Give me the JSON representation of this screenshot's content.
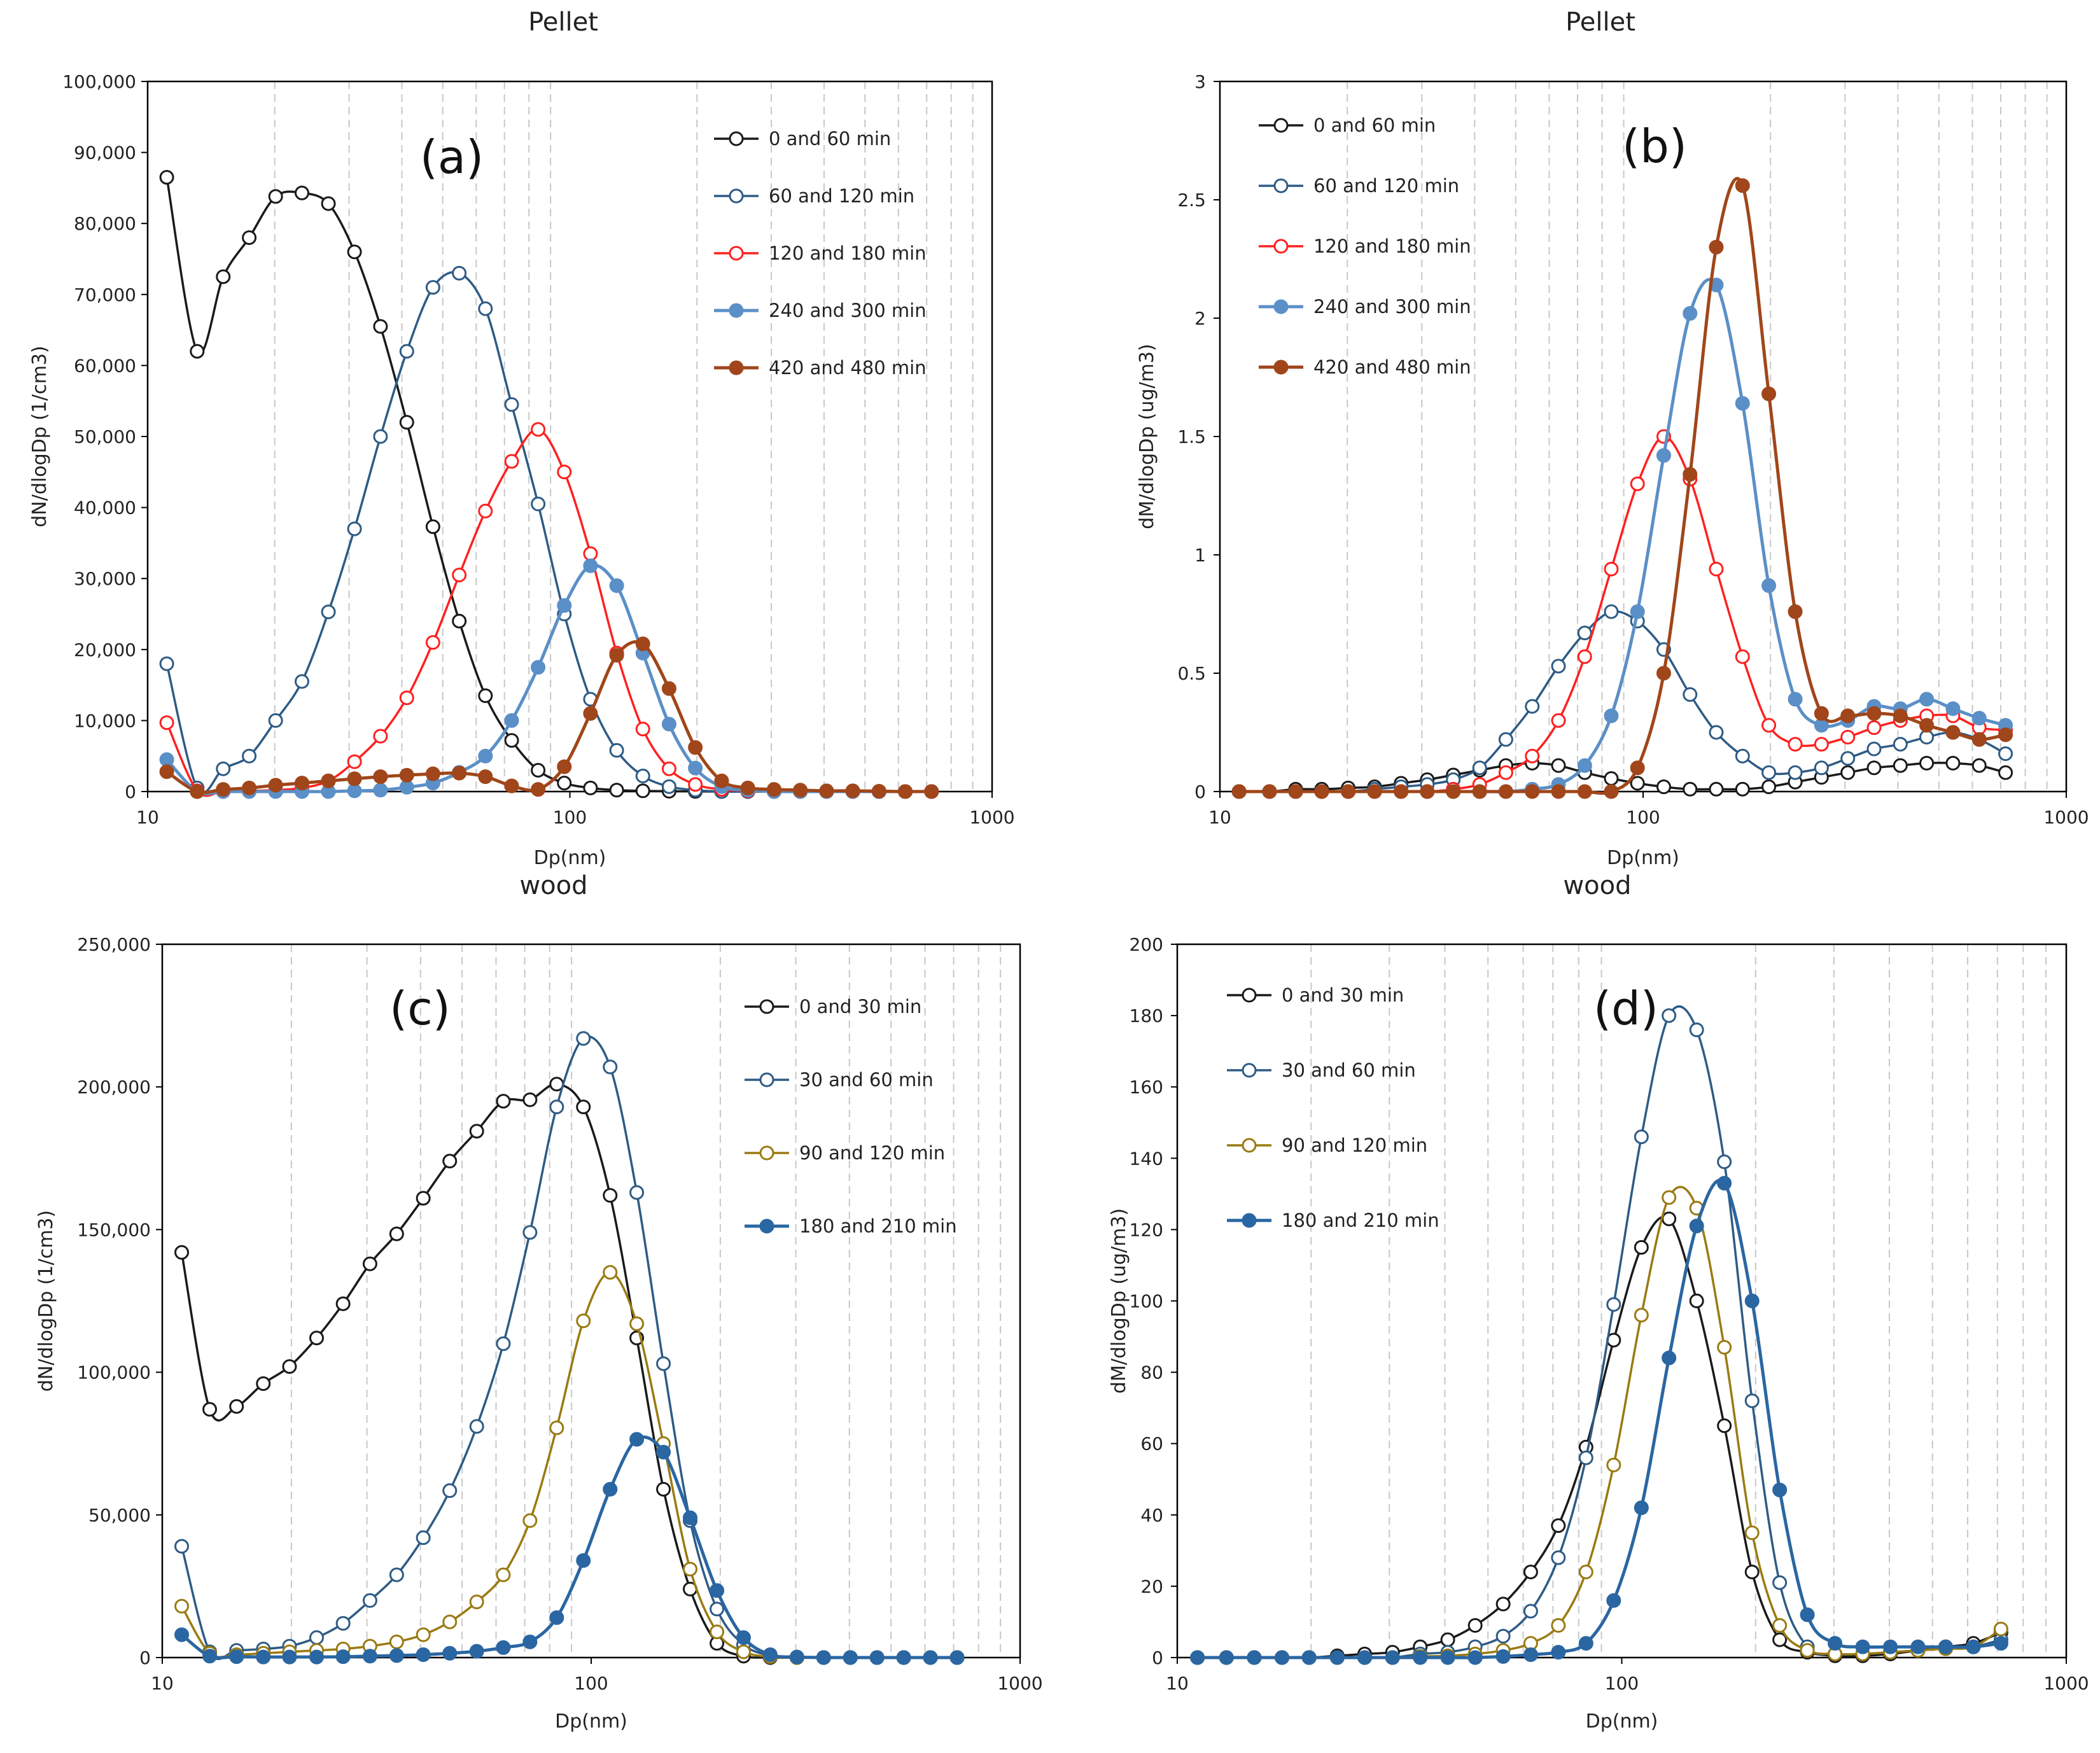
{
  "figure": "particle size distributions",
  "colors": {
    "black": "#1a1a1a",
    "navy": "#2e5b85",
    "red": "#ff2020",
    "steel": "#5b8fc7",
    "brown": "#a0461a",
    "olive": "#9a7a12",
    "darkblue": "#2a66a2",
    "grid": "#c8c8c8"
  },
  "chart_data": [
    {
      "id": "a",
      "type": "line",
      "title": "Pellet",
      "panel_label": "(a)",
      "xlabel": "Dp(nm)",
      "ylabel": "dN/dlogDp (1/cm3)",
      "xscale": "log",
      "xlim": [
        10,
        1000
      ],
      "ylim": [
        0,
        100000
      ],
      "xticks": [
        10,
        100,
        1000
      ],
      "xtick_labels": [
        "10",
        "100",
        "1000"
      ],
      "yticks": [
        0,
        10000,
        20000,
        30000,
        40000,
        50000,
        60000,
        70000,
        80000,
        90000,
        100000
      ],
      "ytick_labels": [
        "0",
        "10,000",
        "20,000",
        "30,000",
        "40,000",
        "50,000",
        "60,000",
        "70,000",
        "80,000",
        "90,000",
        "100,000"
      ],
      "x": [
        11.1,
        13.1,
        15.1,
        17.4,
        20.1,
        23.2,
        26.8,
        30.9,
        35.6,
        41.1,
        47.4,
        54.7,
        63.1,
        72.8,
        84.1,
        97.0,
        111.9,
        129.1,
        148.9,
        171.8,
        198.2,
        228.8,
        264.0,
        304.6,
        351.4,
        405.5,
        467.8,
        539.8,
        622.8,
        718.6
      ],
      "series": [
        {
          "name": "0 and 60 min",
          "color_key": "black",
          "filled": false,
          "values": [
            86500,
            62000,
            72500,
            78000,
            83800,
            84300,
            82800,
            76000,
            65500,
            52000,
            37300,
            24000,
            13500,
            7200,
            3000,
            1200,
            500,
            200,
            100,
            50,
            20,
            10,
            0,
            0,
            0,
            0,
            0,
            0,
            0,
            0
          ]
        },
        {
          "name": "60 and 120 min",
          "color_key": "navy",
          "filled": false,
          "values": [
            18000,
            500,
            3200,
            5000,
            10000,
            15500,
            25300,
            37000,
            50000,
            62000,
            71000,
            73000,
            68000,
            54500,
            40500,
            25000,
            13000,
            5800,
            2200,
            700,
            200,
            0,
            0,
            0,
            0,
            0,
            0,
            0,
            0,
            0
          ]
        },
        {
          "name": "120 and 180 min",
          "color_key": "red",
          "filled": false,
          "values": [
            9700,
            100,
            50,
            100,
            200,
            500,
            1500,
            4200,
            7800,
            13200,
            21000,
            30500,
            39500,
            46500,
            51000,
            45000,
            33500,
            19500,
            8800,
            3200,
            1000,
            300,
            100,
            0,
            0,
            0,
            0,
            0,
            0,
            0
          ]
        },
        {
          "name": "240 and 300 min",
          "color_key": "steel",
          "filled": true,
          "values": [
            4500,
            0,
            0,
            0,
            0,
            0,
            0,
            100,
            200,
            600,
            1200,
            2700,
            5000,
            10000,
            17500,
            26200,
            31800,
            29000,
            19500,
            9500,
            3300,
            700,
            200,
            0,
            0,
            0,
            0,
            0,
            0,
            0
          ]
        },
        {
          "name": "420 and 480 min",
          "color_key": "brown",
          "filled": true,
          "values": [
            2800,
            0,
            300,
            500,
            900,
            1200,
            1500,
            1800,
            2100,
            2300,
            2500,
            2600,
            2100,
            800,
            300,
            3500,
            11000,
            19200,
            20800,
            14500,
            6200,
            1500,
            500,
            300,
            200,
            100,
            100,
            50,
            0,
            0
          ]
        }
      ]
    },
    {
      "id": "b",
      "type": "line",
      "title": "Pellet",
      "panel_label": "(b)",
      "xlabel": "Dp(nm)",
      "ylabel": "dM/dlogDp (ug/m3)",
      "xscale": "log",
      "xlim": [
        10,
        1000
      ],
      "ylim": [
        0,
        3
      ],
      "xticks": [
        10,
        100,
        1000
      ],
      "xtick_labels": [
        "10",
        "100",
        "1000"
      ],
      "yticks": [
        0,
        0.5,
        1,
        1.5,
        2,
        2.5,
        3
      ],
      "ytick_labels": [
        "0",
        "0.5",
        "1",
        "1.5",
        "2",
        "2.5",
        "3"
      ],
      "x": [
        11.1,
        13.1,
        15.1,
        17.4,
        20.1,
        23.2,
        26.8,
        30.9,
        35.6,
        41.1,
        47.4,
        54.7,
        63.1,
        72.8,
        84.1,
        97.0,
        111.9,
        129.1,
        148.9,
        171.8,
        198.2,
        228.8,
        264.0,
        304.6,
        351.4,
        405.5,
        467.8,
        539.8,
        622.8,
        718.6
      ],
      "series": [
        {
          "name": "0 and 60 min",
          "color_key": "black",
          "filled": false,
          "values": [
            0.0,
            0.0,
            0.01,
            0.01,
            0.015,
            0.02,
            0.035,
            0.05,
            0.07,
            0.09,
            0.11,
            0.12,
            0.11,
            0.08,
            0.055,
            0.035,
            0.02,
            0.01,
            0.01,
            0.01,
            0.02,
            0.04,
            0.06,
            0.08,
            0.1,
            0.11,
            0.12,
            0.12,
            0.11,
            0.08
          ]
        },
        {
          "name": "60 and 120 min",
          "color_key": "navy",
          "filled": false,
          "values": [
            0.0,
            0.0,
            0.0,
            0.0,
            0.0,
            0.01,
            0.02,
            0.03,
            0.05,
            0.1,
            0.22,
            0.36,
            0.53,
            0.67,
            0.76,
            0.72,
            0.6,
            0.41,
            0.25,
            0.15,
            0.08,
            0.08,
            0.1,
            0.14,
            0.18,
            0.2,
            0.23,
            0.25,
            0.22,
            0.16
          ]
        },
        {
          "name": "120 and 180 min",
          "color_key": "red",
          "filled": false,
          "values": [
            0.0,
            0.0,
            0.0,
            0.0,
            0.0,
            0.0,
            0.0,
            0.0,
            0.01,
            0.03,
            0.08,
            0.15,
            0.3,
            0.57,
            0.94,
            1.3,
            1.5,
            1.32,
            0.94,
            0.57,
            0.28,
            0.2,
            0.2,
            0.23,
            0.27,
            0.3,
            0.32,
            0.32,
            0.27,
            0.26
          ]
        },
        {
          "name": "240 and 300 min",
          "color_key": "steel",
          "filled": true,
          "values": [
            0.0,
            0.0,
            0.0,
            0.0,
            0.0,
            0.0,
            0.0,
            0.0,
            0.0,
            0.0,
            0.0,
            0.01,
            0.03,
            0.11,
            0.32,
            0.76,
            1.42,
            2.02,
            2.14,
            1.64,
            0.87,
            0.39,
            0.28,
            0.3,
            0.36,
            0.35,
            0.39,
            0.35,
            0.31,
            0.28
          ]
        },
        {
          "name": "420 and 480 min",
          "color_key": "brown",
          "filled": true,
          "values": [
            0.0,
            0.0,
            0.0,
            0.0,
            0.0,
            0.0,
            0.0,
            0.0,
            0.0,
            0.0,
            0.0,
            0.0,
            0.0,
            0.0,
            0.0,
            0.1,
            0.5,
            1.34,
            2.3,
            2.56,
            1.68,
            0.76,
            0.33,
            0.32,
            0.33,
            0.32,
            0.28,
            0.25,
            0.22,
            0.24
          ]
        }
      ]
    },
    {
      "id": "c",
      "type": "line",
      "title": "wood",
      "panel_label": "(c)",
      "xlabel": "Dp(nm)",
      "ylabel": "dN/dlogDp (1/cm3)",
      "xscale": "log",
      "xlim": [
        10,
        1000
      ],
      "ylim": [
        0,
        250000
      ],
      "xticks": [
        10,
        100,
        1000
      ],
      "xtick_labels": [
        "10",
        "100",
        "1000"
      ],
      "yticks": [
        0,
        50000,
        100000,
        150000,
        200000,
        250000
      ],
      "ytick_labels": [
        "0",
        "50,000",
        "100,000",
        "150,000",
        "200,000",
        "250,000"
      ],
      "x": [
        11.1,
        12.9,
        14.9,
        17.2,
        19.8,
        22.9,
        26.4,
        30.5,
        35.2,
        40.6,
        46.8,
        54.1,
        62.4,
        72.0,
        83.1,
        95.9,
        110.7,
        127.7,
        147.4,
        170.1,
        196.4,
        226.6,
        261.5,
        301.8,
        348.3,
        402.0,
        463.9,
        535.4,
        617.9,
        713.1
      ],
      "series": [
        {
          "name": "0 and 30 min",
          "color_key": "black",
          "filled": false,
          "values": [
            142000,
            87000,
            88000,
            96000,
            102000,
            112000,
            124000,
            138000,
            148500,
            161000,
            174000,
            184500,
            195000,
            195500,
            201000,
            193000,
            162000,
            112000,
            59000,
            24000,
            5000,
            500,
            0,
            0,
            0,
            0,
            0,
            0,
            0,
            0
          ]
        },
        {
          "name": "30 and 60 min",
          "color_key": "navy",
          "filled": false,
          "values": [
            39000,
            2000,
            2500,
            3000,
            4000,
            7000,
            12000,
            20000,
            29000,
            42000,
            58500,
            81000,
            110000,
            149000,
            193000,
            217000,
            207000,
            163000,
            103000,
            48000,
            17000,
            4500,
            700,
            0,
            0,
            0,
            0,
            0,
            0,
            0
          ]
        },
        {
          "name": "90 and 120 min",
          "color_key": "olive",
          "filled": false,
          "values": [
            18000,
            1500,
            1000,
            1500,
            2000,
            2500,
            3000,
            4000,
            5500,
            8000,
            12500,
            19500,
            29000,
            48000,
            80500,
            118000,
            135000,
            117000,
            75000,
            31000,
            9000,
            2000,
            300,
            0,
            0,
            0,
            0,
            0,
            0,
            0
          ]
        },
        {
          "name": "180 and 210 min",
          "color_key": "darkblue",
          "filled": true,
          "values": [
            8000,
            500,
            300,
            200,
            200,
            200,
            300,
            500,
            700,
            1000,
            1500,
            2200,
            3500,
            5500,
            14000,
            34000,
            59000,
            76500,
            72000,
            49000,
            23500,
            7000,
            1000,
            200,
            0,
            0,
            0,
            0,
            0,
            0
          ]
        }
      ]
    },
    {
      "id": "d",
      "type": "line",
      "title": "wood",
      "panel_label": "(d)",
      "xlabel": "Dp(nm)",
      "ylabel": "dM/dlogDp (ug/m3)",
      "xscale": "log",
      "xlim": [
        10,
        1000
      ],
      "ylim": [
        0,
        200
      ],
      "xticks": [
        10,
        100,
        1000
      ],
      "xtick_labels": [
        "10",
        "100",
        "1000"
      ],
      "yticks": [
        0,
        20,
        40,
        60,
        80,
        100,
        120,
        140,
        160,
        180,
        200
      ],
      "ytick_labels": [
        "0",
        "20",
        "40",
        "60",
        "80",
        "100",
        "120",
        "140",
        "160",
        "180",
        "200"
      ],
      "x": [
        11.1,
        12.9,
        14.9,
        17.2,
        19.8,
        22.9,
        26.4,
        30.5,
        35.2,
        40.6,
        46.8,
        54.1,
        62.4,
        72.0,
        83.1,
        95.9,
        110.7,
        127.7,
        147.4,
        170.1,
        196.4,
        226.6,
        261.5,
        301.8,
        348.3,
        402.0,
        463.9,
        535.4,
        617.9,
        713.1
      ],
      "series": [
        {
          "name": "0 and 30 min",
          "color_key": "black",
          "filled": false,
          "values": [
            0,
            0,
            0,
            0,
            0,
            0.5,
            1,
            1.5,
            3,
            5,
            9,
            15,
            24,
            37,
            59,
            89,
            115,
            123,
            100,
            65,
            24,
            5,
            1.5,
            0.5,
            0.5,
            1,
            2,
            3,
            4,
            7
          ]
        },
        {
          "name": "30 and 60 min",
          "color_key": "navy",
          "filled": false,
          "values": [
            0,
            0,
            0,
            0,
            0,
            0,
            0,
            0,
            1,
            1.5,
            3,
            6,
            13,
            28,
            56,
            99,
            146,
            180,
            176,
            139,
            72,
            21,
            3,
            1,
            1,
            1.5,
            2,
            2.5,
            3,
            5
          ]
        },
        {
          "name": "90 and 120 min",
          "color_key": "olive",
          "filled": false,
          "values": [
            0,
            0,
            0,
            0,
            0,
            0,
            0,
            0,
            0.3,
            0.5,
            1,
            2,
            4,
            9,
            24,
            54,
            96,
            129,
            126,
            87,
            35,
            9,
            2,
            1,
            1,
            1.5,
            2,
            2.5,
            3,
            8
          ]
        },
        {
          "name": "180 and 210 min",
          "color_key": "darkblue",
          "filled": true,
          "values": [
            0,
            0,
            0,
            0,
            0,
            0,
            0,
            0,
            0,
            0,
            0,
            0.3,
            0.8,
            1.5,
            4,
            16,
            42,
            84,
            121,
            133,
            100,
            47,
            12,
            4,
            3,
            3,
            3,
            3,
            3,
            4
          ]
        }
      ]
    }
  ]
}
